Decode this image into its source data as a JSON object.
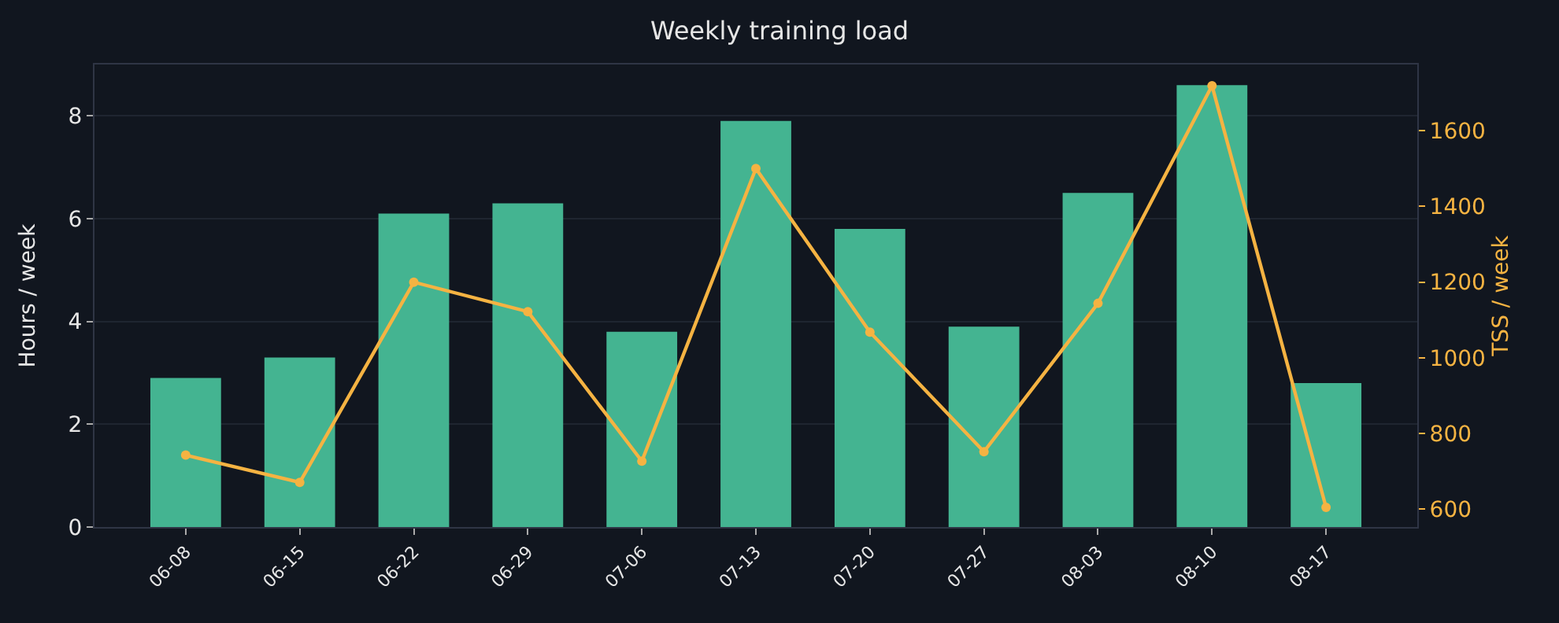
{
  "chart_data": {
    "type": "bar",
    "title": "Weekly training load",
    "ylabel": "Hours / week",
    "y2label": "TSS / week",
    "categories": [
      "06-08",
      "06-15",
      "06-22",
      "06-29",
      "07-06",
      "07-13",
      "07-20",
      "07-27",
      "08-03",
      "08-10",
      "08-17"
    ],
    "series": [
      {
        "color": "#44b491",
        "values": [
          2.9,
          3.3,
          6.1,
          6.3,
          3.8,
          7.9,
          5.8,
          3.9,
          6.5,
          8.6,
          2.8
        ]
      },
      {
        "type": "line",
        "axis": "y2",
        "color": "#f5b342",
        "marker": "circle",
        "line_style": "solid",
        "values": [
          743,
          671,
          1200,
          1122,
          727,
          1500,
          1068,
          752,
          1144,
          1719,
          605
        ]
      }
    ],
    "ylim": [
      0,
      9
    ],
    "yticks": [
      0,
      2,
      4,
      6,
      8
    ],
    "y2lim": [
      553,
      1775
    ],
    "y2ticks": [
      600,
      800,
      1000,
      1200,
      1400,
      1600
    ],
    "grid": "y"
  }
}
